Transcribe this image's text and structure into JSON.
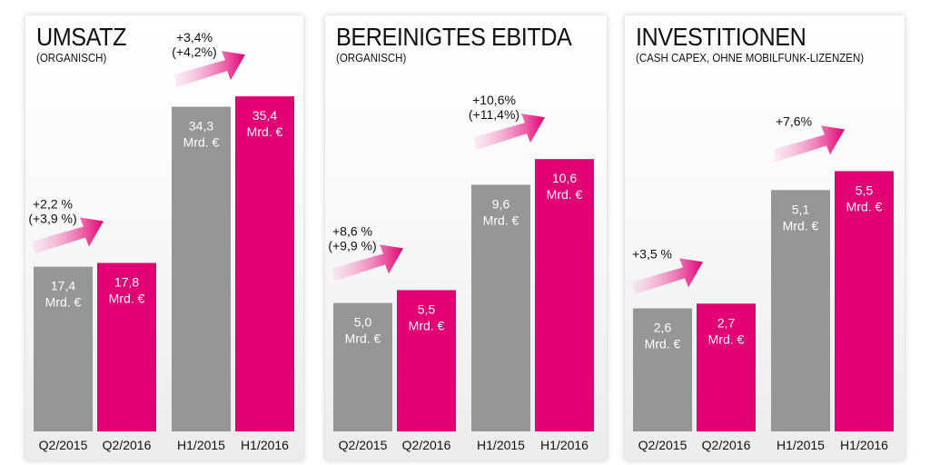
{
  "colors": {
    "grey": "#969696",
    "magenta": "#e20074",
    "arrow_light": "#f7c6de"
  },
  "unit_label": "Mrd. €",
  "chart_data": [
    {
      "type": "bar",
      "title": "UMSATZ",
      "subtitle": "(ORGANISCH)",
      "ylim": [
        0,
        38
      ],
      "categories": [
        "Q2/2015",
        "Q2/2016",
        "H1/2015",
        "H1/2016"
      ],
      "values": [
        17.4,
        17.8,
        34.3,
        35.4
      ],
      "value_labels": [
        "17,4",
        "17,8",
        "34,3",
        "35,4"
      ],
      "bar_colors": [
        "grey",
        "magenta",
        "grey",
        "magenta"
      ],
      "annotations": [
        {
          "lines": [
            "+2,2 %",
            "(+3,9 %)"
          ],
          "pair": 0
        },
        {
          "lines": [
            "+3,4%",
            "(+4,2%)"
          ],
          "pair": 1
        }
      ]
    },
    {
      "type": "bar",
      "title": "BEREINIGTES EBITDA",
      "subtitle": "(ORGANISCH)",
      "ylim": [
        0,
        14
      ],
      "categories": [
        "Q2/2015",
        "Q2/2016",
        "H1/2015",
        "H1/2016"
      ],
      "values": [
        5.0,
        5.5,
        9.6,
        10.6
      ],
      "value_labels": [
        "5,0",
        "5,5",
        "9,6",
        "10,6"
      ],
      "bar_colors": [
        "grey",
        "magenta",
        "grey",
        "magenta"
      ],
      "annotations": [
        {
          "lines": [
            "+8,6 %",
            "(+9,9 %)"
          ],
          "pair": 0
        },
        {
          "lines": [
            "+10,6%",
            "(+11,4%)"
          ],
          "pair": 1
        }
      ]
    },
    {
      "type": "bar",
      "title": "INVESTITIONEN",
      "subtitle": "(CASH CAPEX, OHNE MOBILFUNK-LIZENZEN)",
      "ylim": [
        0,
        7.6
      ],
      "categories": [
        "Q2/2015",
        "Q2/2016",
        "H1/2015",
        "H1/2016"
      ],
      "values": [
        2.6,
        2.7,
        5.1,
        5.5
      ],
      "value_labels": [
        "2,6",
        "2,7",
        "5,1",
        "5,5"
      ],
      "bar_colors": [
        "grey",
        "magenta",
        "grey",
        "magenta"
      ],
      "annotations": [
        {
          "lines": [
            "+3,5 %"
          ],
          "pair": 0
        },
        {
          "lines": [
            "+7,6%"
          ],
          "pair": 1
        }
      ]
    }
  ]
}
